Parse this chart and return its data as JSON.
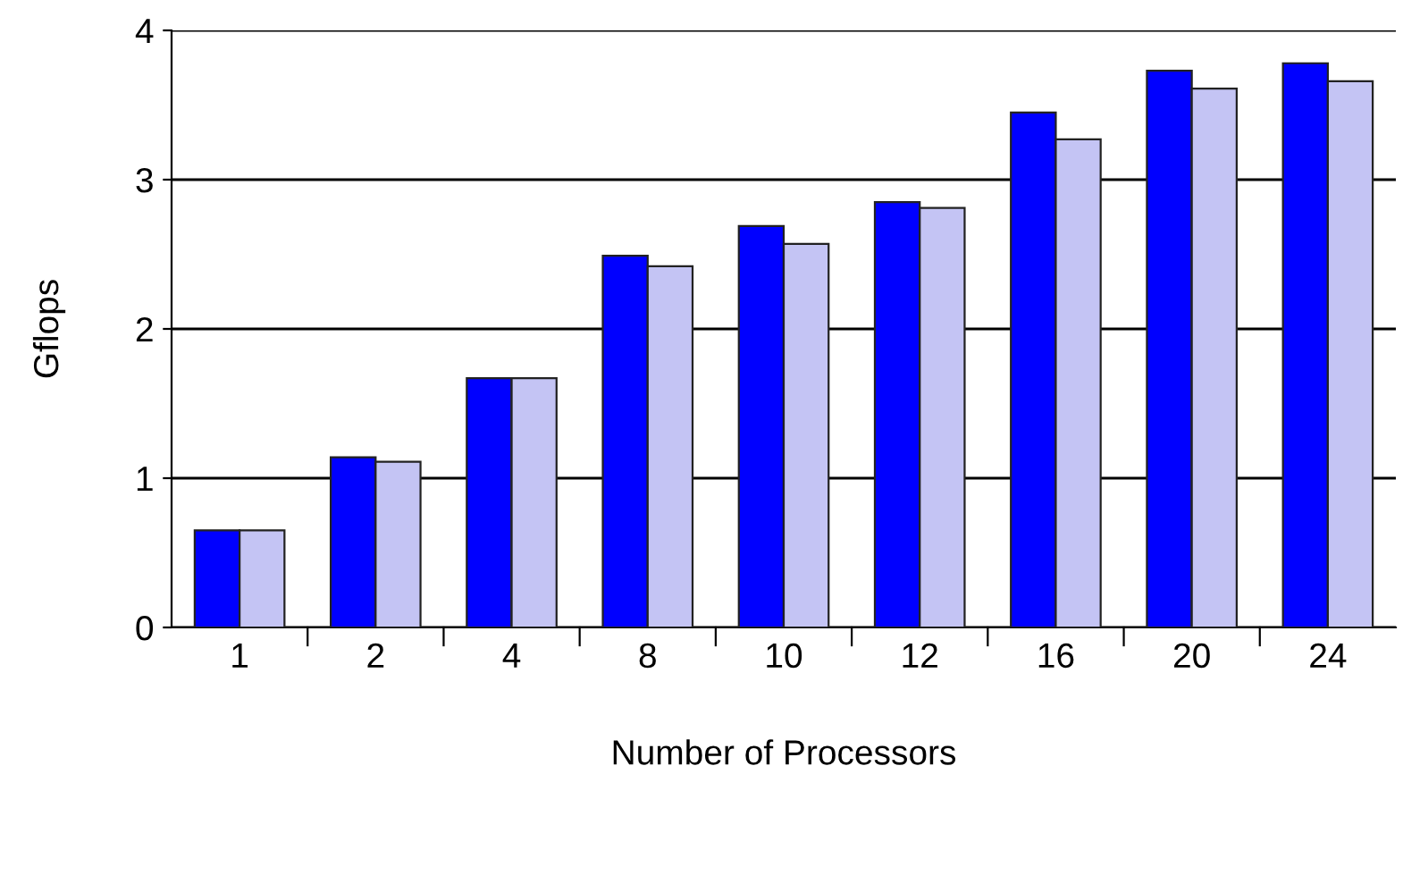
{
  "chart_data": {
    "type": "bar",
    "xlabel": "Number of Processors",
    "ylabel": "Gflops",
    "categories": [
      "1",
      "2",
      "4",
      "8",
      "10",
      "12",
      "16",
      "20",
      "24"
    ],
    "series": [
      {
        "color": "#0000ff",
        "values": [
          0.65,
          1.14,
          1.67,
          2.49,
          2.69,
          2.85,
          3.45,
          3.73,
          3.78
        ]
      },
      {
        "color": "#c4c4f4",
        "values": [
          0.65,
          1.11,
          1.67,
          2.42,
          2.57,
          2.81,
          3.27,
          3.61,
          3.66
        ]
      }
    ],
    "ylim": [
      0,
      4
    ],
    "yticks": [
      0,
      1,
      2,
      3,
      4
    ],
    "grid": "y"
  }
}
